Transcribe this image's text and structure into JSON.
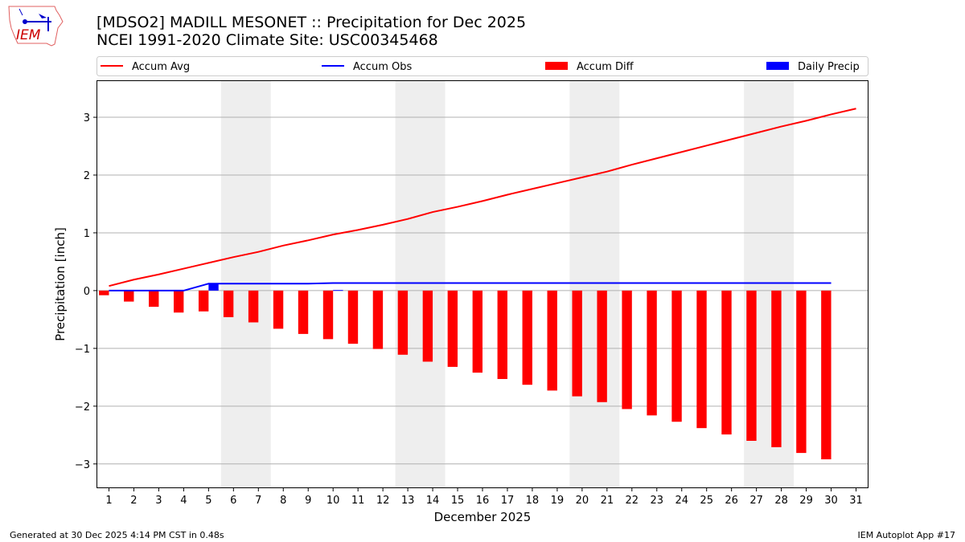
{
  "header": {
    "title_line1": "[MDSO2] MADILL MESONET :: Precipitation for Dec 2025",
    "title_line2": "NCEI 1991-2020 Climate Site: USC00345468"
  },
  "logo": {
    "text": "IEM"
  },
  "footer": {
    "left": "Generated at 30 Dec 2025 4:14 PM CST in 0.48s",
    "right": "IEM Autoplot App #17"
  },
  "chart_data": {
    "type": "bar+line",
    "xlabel": "December 2025",
    "ylabel": "Precipitation [inch]",
    "xlim": [
      0.5,
      31.5
    ],
    "ylim": [
      -3.42,
      3.64
    ],
    "yticks": [
      -3,
      -2,
      -1,
      0,
      1,
      2,
      3
    ],
    "ytick_labels": [
      "−3",
      "−2",
      "−1",
      "0",
      "1",
      "2",
      "3"
    ],
    "days": [
      1,
      2,
      3,
      4,
      5,
      6,
      7,
      8,
      9,
      10,
      11,
      12,
      13,
      14,
      15,
      16,
      17,
      18,
      19,
      20,
      21,
      22,
      23,
      24,
      25,
      26,
      27,
      28,
      29,
      30,
      31
    ],
    "grid": "horizontal",
    "legend_placement": "top",
    "weekend_shading": [
      [
        6,
        7
      ],
      [
        13,
        14
      ],
      [
        20,
        21
      ],
      [
        27,
        28
      ]
    ],
    "series": [
      {
        "name": "Accum Avg",
        "type": "line",
        "color": "#ff0000",
        "values": [
          0.08,
          0.19,
          0.28,
          0.38,
          0.48,
          0.58,
          0.67,
          0.78,
          0.87,
          0.97,
          1.05,
          1.14,
          1.24,
          1.36,
          1.45,
          1.55,
          1.66,
          1.76,
          1.86,
          1.96,
          2.06,
          2.18,
          2.29,
          2.4,
          2.51,
          2.62,
          2.73,
          2.84,
          2.94,
          3.05,
          3.15
        ]
      },
      {
        "name": "Accum Obs",
        "type": "line",
        "color": "#0000ff",
        "values": [
          0,
          0,
          0,
          0,
          0.12,
          0.12,
          0.12,
          0.12,
          0.12,
          0.13,
          0.13,
          0.13,
          0.13,
          0.13,
          0.13,
          0.13,
          0.13,
          0.13,
          0.13,
          0.13,
          0.13,
          0.13,
          0.13,
          0.13,
          0.13,
          0.13,
          0.13,
          0.13,
          0.13,
          0.13,
          null
        ]
      },
      {
        "name": "Accum Diff",
        "type": "bar",
        "color": "#ff0000",
        "values": [
          -0.08,
          -0.19,
          -0.28,
          -0.38,
          -0.36,
          -0.46,
          -0.55,
          -0.66,
          -0.75,
          -0.84,
          -0.92,
          -1.01,
          -1.11,
          -1.23,
          -1.32,
          -1.42,
          -1.53,
          -1.63,
          -1.73,
          -1.83,
          -1.93,
          -2.05,
          -2.16,
          -2.27,
          -2.38,
          -2.49,
          -2.6,
          -2.71,
          -2.81,
          -2.92,
          null
        ]
      },
      {
        "name": "Daily Precip",
        "type": "bar",
        "color": "#0000ff",
        "values": [
          0,
          0,
          0,
          0,
          0.12,
          0,
          0,
          0,
          0,
          0.01,
          0,
          0,
          0,
          0,
          0,
          0,
          0,
          0,
          0,
          0,
          0,
          0,
          0,
          0,
          0,
          0,
          0,
          0,
          0,
          0,
          null
        ]
      }
    ]
  }
}
